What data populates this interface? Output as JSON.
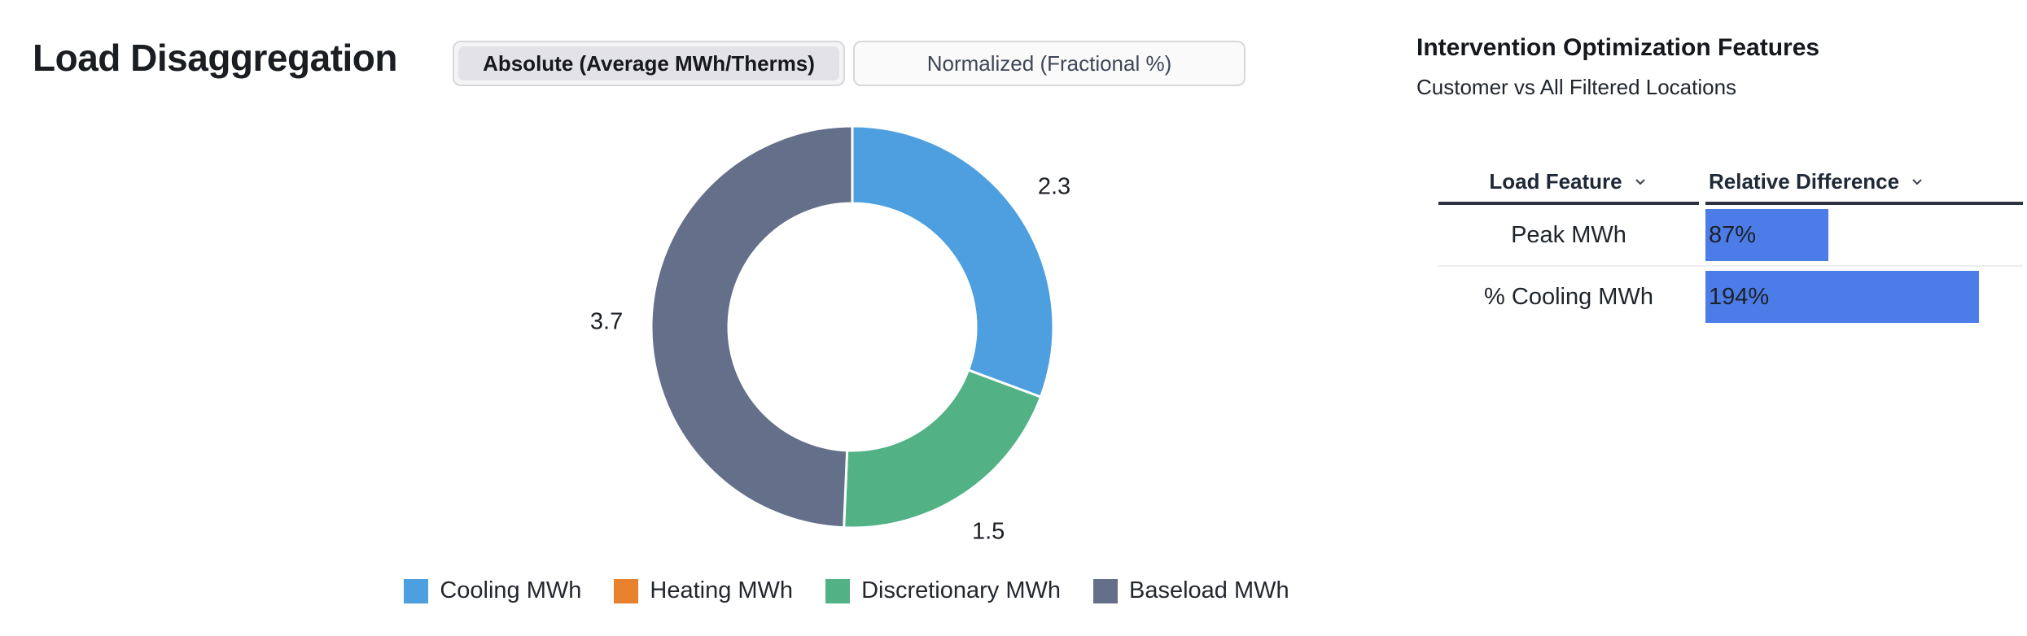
{
  "page": {
    "title": "Load Disaggregation"
  },
  "toggle": {
    "options": [
      {
        "label": "Absolute (Average MWh/Therms)",
        "selected": true
      },
      {
        "label": "Normalized (Fractional %)",
        "selected": false
      }
    ]
  },
  "chart_data": {
    "type": "pie",
    "donut": true,
    "categories": [
      "Cooling MWh",
      "Heating MWh",
      "Discretionary MWh",
      "Baseload MWh"
    ],
    "values": [
      2.3,
      0,
      1.5,
      3.7
    ],
    "data_labels": [
      "2.3",
      "",
      "1.5",
      "3.7"
    ],
    "colors": [
      "#4d9fe0",
      "#e8812e",
      "#52b185",
      "#64708a"
    ],
    "start_angle_deg": 0,
    "direction": "clockwise",
    "legend_position": "bottom",
    "title": ""
  },
  "panel": {
    "title": "Intervention Optimization Features",
    "subtitle": "Customer vs All Filtered Locations",
    "table": {
      "columns": [
        {
          "label": "Load Feature",
          "sort_icon": "chevron-down"
        },
        {
          "label": "Relative Difference",
          "sort_icon": "chevron-down"
        }
      ],
      "rows": [
        {
          "feature": "Peak MWh",
          "value_pct": 87,
          "value_label": "87%"
        },
        {
          "feature": "% Cooling MWh",
          "value_pct": 194,
          "value_label": "194%"
        }
      ],
      "bar_color": "#4c7ce8"
    }
  }
}
